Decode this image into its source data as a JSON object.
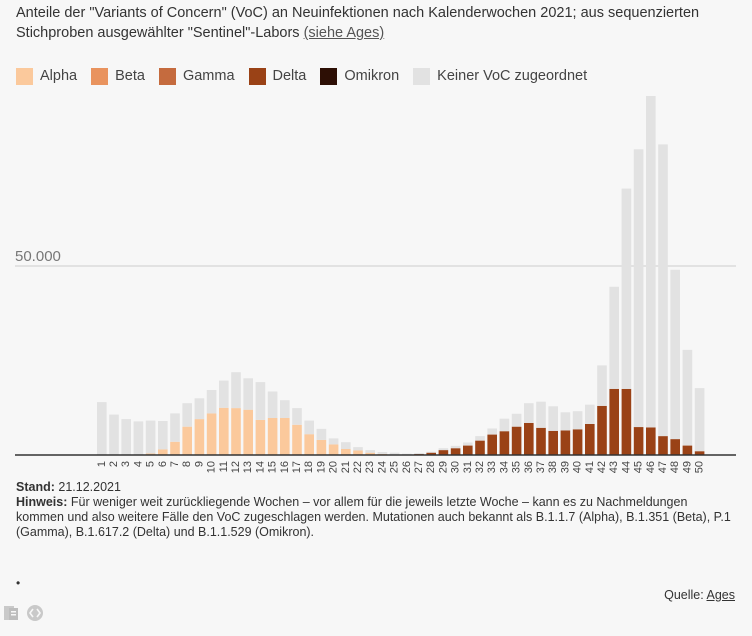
{
  "title": {
    "text": "Anteile der \"Variants of Concern\" (VoC) an Neuinfektionen nach Kalenderwochen 2021; aus sequenzierten Stichproben ausgewählter \"Sentinel\"-Labors",
    "link_text": "(siehe Ages)"
  },
  "legend": [
    {
      "name": "Alpha",
      "color": "#fbc99c"
    },
    {
      "name": "Beta",
      "color": "#e9935e"
    },
    {
      "name": "Gamma",
      "color": "#c56b3e"
    },
    {
      "name": "Delta",
      "color": "#9a4216"
    },
    {
      "name": "Omikron",
      "color": "#2d0f05"
    },
    {
      "name": "Keiner VoC zugeordnet",
      "color": "#e2e2e2"
    }
  ],
  "chart_data": {
    "type": "bar",
    "stacked": true,
    "categories": [
      "1",
      "2",
      "3",
      "4",
      "5",
      "6",
      "7",
      "8",
      "9",
      "10",
      "11",
      "12",
      "13",
      "14",
      "15",
      "16",
      "17",
      "18",
      "19",
      "20",
      "21",
      "22",
      "23",
      "24",
      "25",
      "26",
      "27",
      "28",
      "29",
      "30",
      "31",
      "32",
      "33",
      "34",
      "35",
      "36",
      "37",
      "38",
      "39",
      "40",
      "41",
      "42",
      "43",
      "44",
      "45",
      "46",
      "47",
      "48",
      "49",
      "50"
    ],
    "ylim": [
      0,
      95000
    ],
    "gridline_label": "50.000",
    "gridline_value": 50000,
    "series": [
      {
        "name": "Alpha",
        "values": [
          0,
          0,
          0,
          0,
          400,
          1500,
          3500,
          7500,
          9500,
          11000,
          12500,
          12400,
          12000,
          9300,
          9800,
          9800,
          8000,
          5500,
          4000,
          2800,
          1600,
          1200,
          600,
          300,
          100,
          0,
          0,
          0,
          0,
          0,
          0,
          0,
          0,
          0,
          0,
          0,
          0,
          0,
          0,
          0,
          0,
          0,
          0,
          0,
          0,
          0,
          0,
          0,
          0,
          0
        ]
      },
      {
        "name": "Beta",
        "values": [
          0,
          0,
          0,
          0,
          0,
          0,
          0,
          0,
          0,
          0,
          0,
          0,
          0,
          0,
          0,
          0,
          0,
          0,
          0,
          0,
          0,
          0,
          0,
          0,
          0,
          0,
          0,
          0,
          0,
          0,
          0,
          0,
          0,
          0,
          0,
          0,
          0,
          0,
          0,
          0,
          0,
          0,
          0,
          0,
          0,
          0,
          0,
          0,
          0,
          0
        ]
      },
      {
        "name": "Gamma",
        "values": [
          0,
          0,
          0,
          0,
          0,
          0,
          0,
          0,
          0,
          0,
          0,
          0,
          0,
          0,
          0,
          0,
          0,
          0,
          0,
          0,
          0,
          0,
          0,
          0,
          0,
          0,
          0,
          0,
          0,
          0,
          0,
          0,
          0,
          0,
          0,
          0,
          0,
          0,
          0,
          0,
          0,
          0,
          0,
          0,
          0,
          0,
          0,
          0,
          0,
          0
        ]
      },
      {
        "name": "Delta",
        "values": [
          0,
          0,
          0,
          0,
          0,
          0,
          0,
          0,
          0,
          0,
          0,
          0,
          0,
          0,
          0,
          0,
          0,
          0,
          0,
          0,
          0,
          0,
          0,
          0,
          0,
          150,
          250,
          600,
          1300,
          1800,
          2500,
          3800,
          5400,
          6300,
          7500,
          8500,
          7200,
          6400,
          6500,
          6800,
          8200,
          13000,
          17500,
          17500,
          7400,
          7300,
          5000,
          4200,
          2500,
          1000
        ]
      },
      {
        "name": "Omikron",
        "values": [
          0,
          0,
          0,
          0,
          0,
          0,
          0,
          0,
          0,
          0,
          0,
          0,
          0,
          0,
          0,
          0,
          0,
          0,
          0,
          0,
          0,
          0,
          0,
          0,
          0,
          0,
          0,
          0,
          0,
          0,
          0,
          0,
          0,
          0,
          0,
          0,
          0,
          0,
          0,
          0,
          0,
          0,
          0,
          0,
          0,
          0,
          0,
          0,
          0,
          0
        ]
      },
      {
        "name": "Keiner VoC zugeordnet",
        "values": [
          14000,
          10700,
          9500,
          8900,
          8700,
          7500,
          7500,
          6200,
          5500,
          6200,
          7200,
          9500,
          8300,
          10000,
          7000,
          4700,
          4400,
          3600,
          2900,
          1600,
          1800,
          900,
          700,
          500,
          500,
          200,
          250,
          250,
          500,
          600,
          800,
          1200,
          1600,
          3300,
          3400,
          5200,
          6900,
          6500,
          4800,
          4800,
          5100,
          10700,
          27000,
          53000,
          73500,
          89800,
          77200,
          44800,
          25300,
          16700
        ]
      }
    ]
  },
  "footer": {
    "stand_label": "Stand:",
    "stand_value": "21.12.2021",
    "hinweis_label": "Hinweis:",
    "hinweis_text": "Für weniger weit zurückliegende Wochen – vor allem für die jeweils letzte Woche – kann es zu Nachmeldungen kommen und also weitere Fälle den VoC zugeschlagen werden. Mutationen auch bekannt als B.1.1.7 (Alpha), B.1.351 (Beta), P.1 (Gamma), B.1.617.2 (Delta) und B.1.1.529 (Omikron).",
    "bullet": "•"
  },
  "source": {
    "label": "Quelle:",
    "link_text": "Ages"
  },
  "share_icons": [
    "document-icon",
    "embed-icon"
  ]
}
